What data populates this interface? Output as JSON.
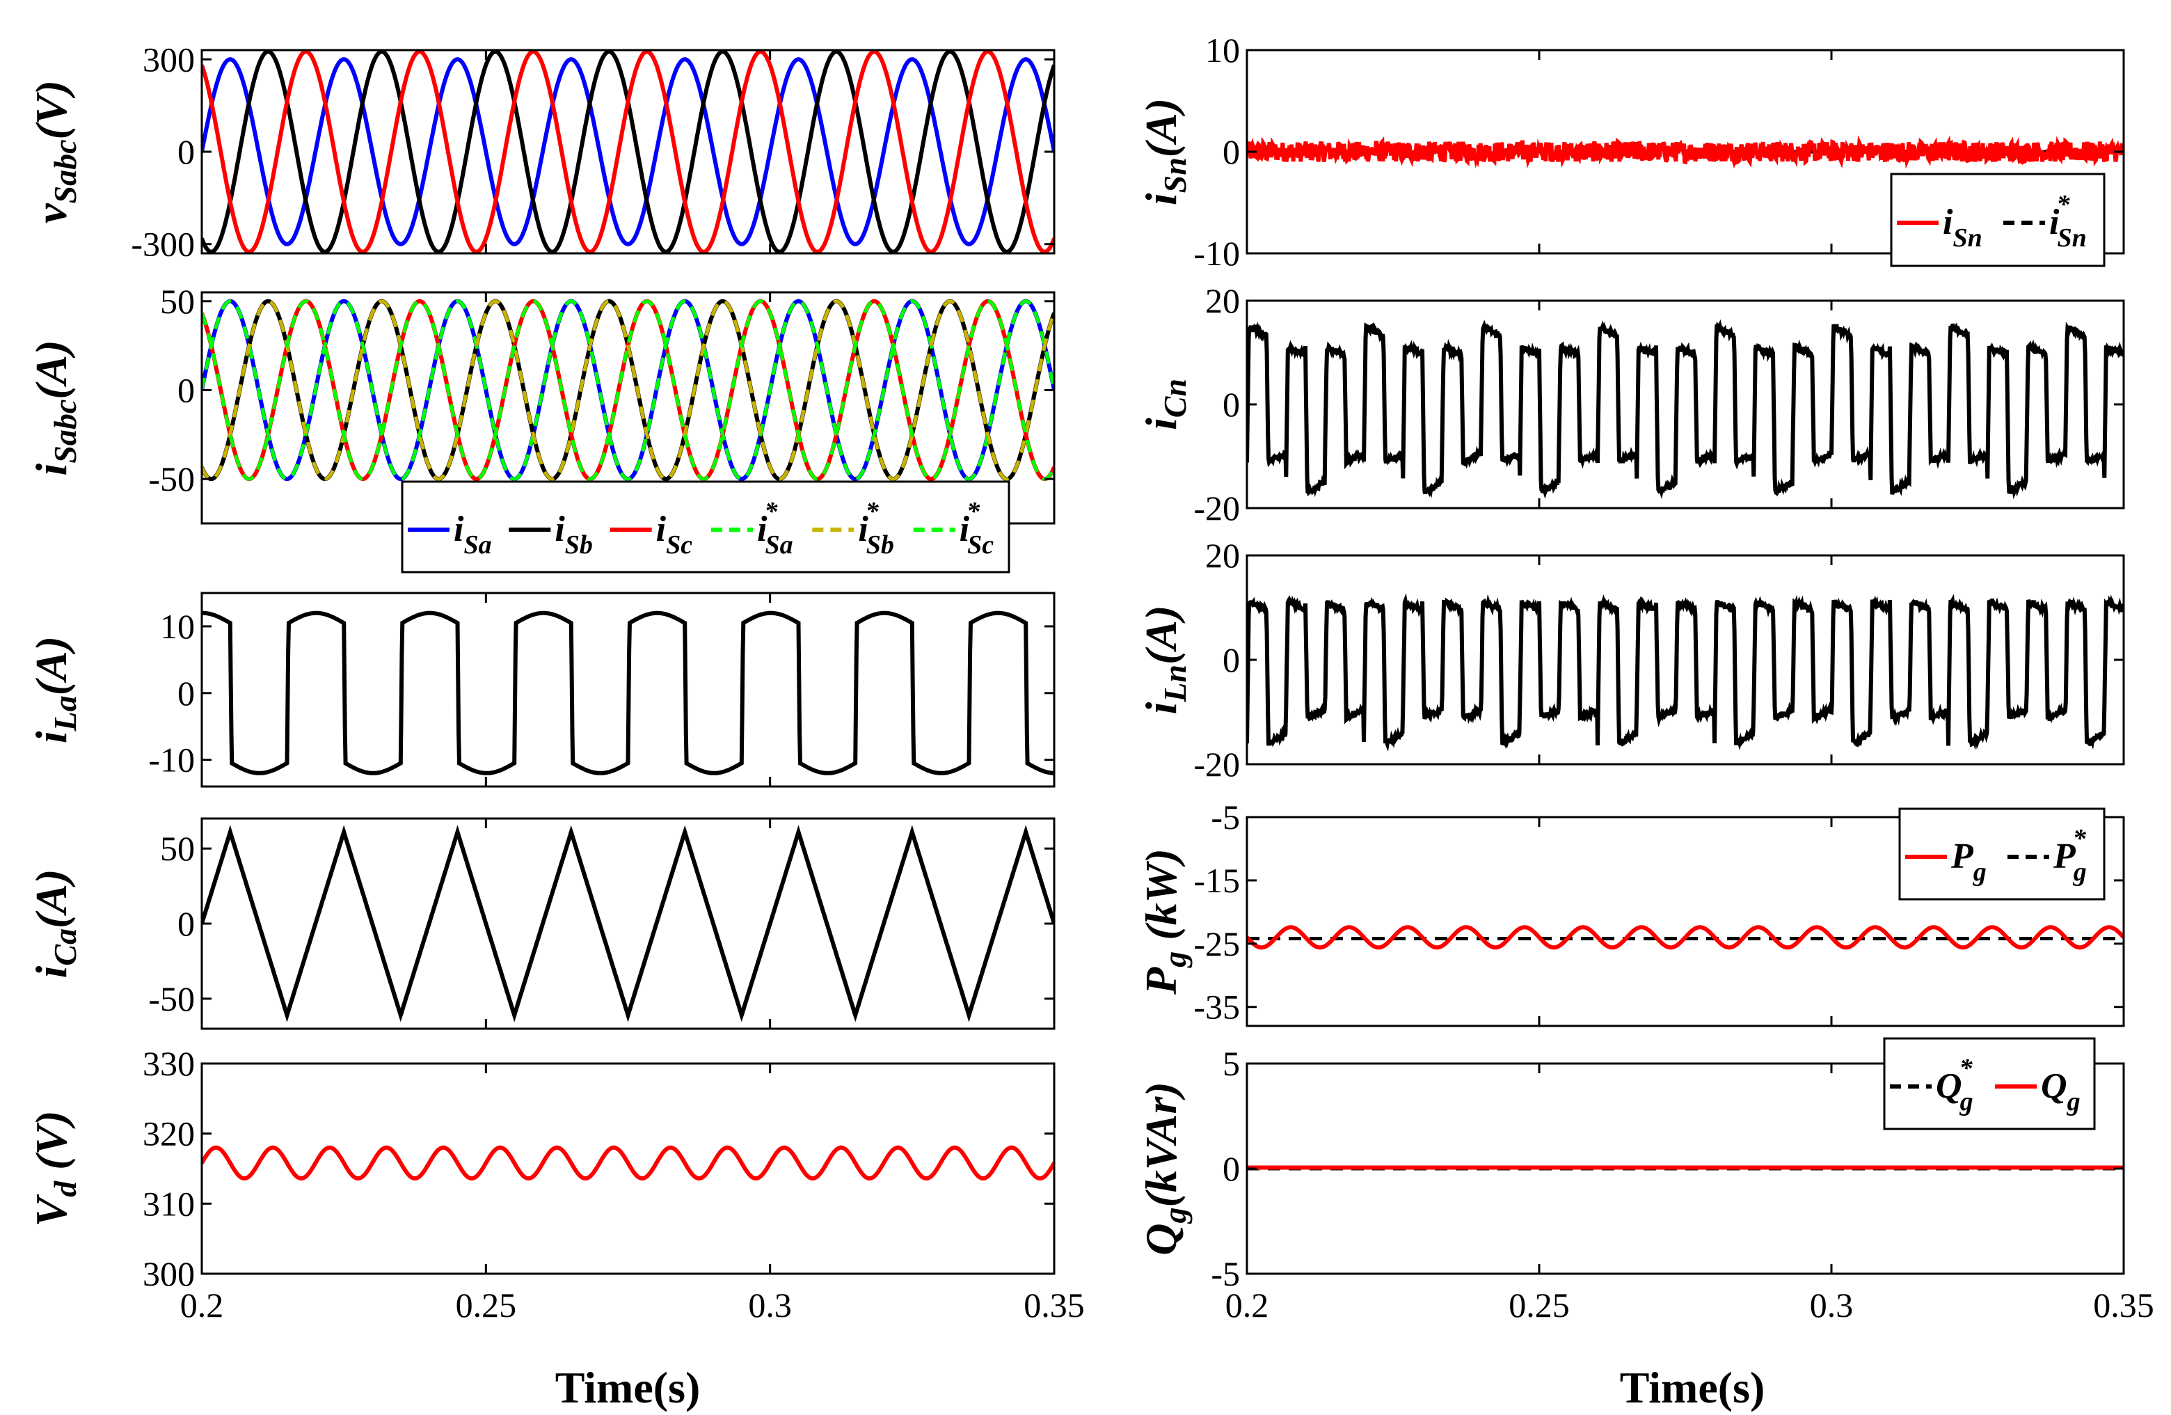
{
  "colors": {
    "blue": "#0000ff",
    "black": "#000000",
    "red": "#ff0000",
    "green": "#00ff00",
    "olive": "#c8b400",
    "axis": "#000000"
  },
  "xaxis": {
    "label": "Time(s)",
    "range": [
      0.2,
      0.35
    ],
    "ticks": [
      "0.2",
      "0.25",
      "0.3",
      "0.35"
    ]
  },
  "chart_data": [
    {
      "id": "vsabc",
      "type": "line",
      "ylabel": {
        "main": "v",
        "sub": "Sabc",
        "unit": "(V)"
      },
      "xlim": [
        0.2,
        0.35
      ],
      "ylim": [
        -330,
        330
      ],
      "yticks": [
        "300",
        "0",
        "-300"
      ],
      "ytick_values": [
        300,
        0,
        -300
      ],
      "series": [
        {
          "name": "v_Sa",
          "color": "blue",
          "kind": "sine",
          "amplitude": 300,
          "frequency_hz": 50,
          "phase_deg": 0
        },
        {
          "name": "v_Sb",
          "color": "black",
          "kind": "sine",
          "amplitude": 325,
          "frequency_hz": 50,
          "phase_deg": -120
        },
        {
          "name": "v_Sc",
          "color": "red",
          "kind": "sine",
          "amplitude": 325,
          "frequency_hz": 50,
          "phase_deg": 120
        }
      ]
    },
    {
      "id": "isabc",
      "type": "line",
      "ylabel": {
        "main": "i",
        "sub": "Sabc",
        "unit": "(A)"
      },
      "xlim": [
        0.2,
        0.35
      ],
      "ylim": [
        -75,
        55
      ],
      "yticks": [
        "50",
        "0",
        "-50"
      ],
      "ytick_values": [
        50,
        0,
        -50
      ],
      "series": [
        {
          "name": "i_Sa",
          "color": "blue",
          "kind": "sine",
          "amplitude": 50,
          "frequency_hz": 50,
          "phase_deg": 0
        },
        {
          "name": "i_Sb",
          "color": "black",
          "kind": "sine",
          "amplitude": 50,
          "frequency_hz": 50,
          "phase_deg": -120
        },
        {
          "name": "i_Sc",
          "color": "red",
          "kind": "sine",
          "amplitude": 50,
          "frequency_hz": 50,
          "phase_deg": 120
        },
        {
          "name": "i*_Sa",
          "color": "green",
          "dash": true,
          "kind": "sine",
          "amplitude": 50,
          "frequency_hz": 50,
          "phase_deg": 0
        },
        {
          "name": "i*_Sb",
          "color": "olive",
          "dash": true,
          "kind": "sine",
          "amplitude": 50,
          "frequency_hz": 50,
          "phase_deg": -120
        },
        {
          "name": "i*_Sc",
          "color": "green",
          "dash": true,
          "kind": "sine",
          "amplitude": 50,
          "frequency_hz": 50,
          "phase_deg": 120
        }
      ],
      "legend": {
        "position": "bottom-right",
        "entries": [
          {
            "color": "blue",
            "dash": false,
            "main": "i",
            "sub": "Sa",
            "sup": ""
          },
          {
            "color": "black",
            "dash": false,
            "main": "i",
            "sub": "Sb",
            "sup": ""
          },
          {
            "color": "red",
            "dash": false,
            "main": "i",
            "sub": "Sc",
            "sup": ""
          },
          {
            "color": "green",
            "dash": true,
            "main": "i",
            "sub": "Sa",
            "sup": "*"
          },
          {
            "color": "olive",
            "dash": true,
            "main": "i",
            "sub": "Sb",
            "sup": "*"
          },
          {
            "color": "green",
            "dash": true,
            "main": "i",
            "sub": "Sc",
            "sup": "*"
          }
        ]
      }
    },
    {
      "id": "ila",
      "type": "line",
      "ylabel": {
        "main": "i",
        "sub": "La",
        "unit": "(A)"
      },
      "xlim": [
        0.2,
        0.35
      ],
      "ylim": [
        -14,
        15
      ],
      "yticks": [
        "10",
        "0",
        "-10"
      ],
      "ytick_values": [
        10,
        0,
        -10
      ],
      "series": [
        {
          "name": "i_La",
          "color": "black",
          "kind": "square",
          "level": 10.5,
          "ripple": 1.5,
          "frequency_hz": 50,
          "phase_deg": 90
        }
      ]
    },
    {
      "id": "ica",
      "type": "line",
      "ylabel": {
        "main": "i",
        "sub": "Ca",
        "unit": "(A)"
      },
      "xlim": [
        0.2,
        0.35
      ],
      "ylim": [
        -70,
        70
      ],
      "yticks": [
        "50",
        "0",
        "-50"
      ],
      "ytick_values": [
        50,
        0,
        -50
      ],
      "series": [
        {
          "name": "i_Ca",
          "color": "black",
          "kind": "triangle",
          "amplitude": 61,
          "frequency_hz": 50,
          "phase_deg": 0
        }
      ]
    },
    {
      "id": "vd",
      "type": "line",
      "ylabel": {
        "main": "V",
        "sub": "d",
        "unit": " (V)"
      },
      "xlim": [
        0.2,
        0.35
      ],
      "ylim": [
        300,
        330
      ],
      "yticks": [
        "330",
        "320",
        "310",
        "300"
      ],
      "ytick_values": [
        330,
        320,
        310,
        300
      ],
      "series": [
        {
          "name": "V_d",
          "color": "red",
          "kind": "sine",
          "offset": 315.8,
          "amplitude": 2.2,
          "frequency_hz": 100,
          "phase_deg": 0
        }
      ]
    },
    {
      "id": "isn",
      "type": "line",
      "ylabel": {
        "main": "i",
        "sub": "Sn",
        "unit": "(A)"
      },
      "xlim": [
        0.2,
        0.35
      ],
      "ylim": [
        -10,
        10
      ],
      "yticks": [
        "10",
        "0",
        "-10"
      ],
      "ytick_values": [
        10,
        0,
        -10
      ],
      "series": [
        {
          "name": "i*_Sn",
          "color": "black",
          "dash": true,
          "kind": "const",
          "offset": 0
        },
        {
          "name": "i_Sn",
          "color": "red",
          "kind": "noise",
          "offset": 0,
          "amplitude": 1.0
        }
      ],
      "legend": {
        "position": "bottom-right",
        "entries": [
          {
            "color": "red",
            "dash": false,
            "main": "i",
            "sub": "Sn",
            "sup": ""
          },
          {
            "color": "black",
            "dash": true,
            "main": "i",
            "sub": "Sn",
            "sup": "*"
          }
        ]
      }
    },
    {
      "id": "icn",
      "type": "line",
      "ylabel": {
        "main": "i",
        "sub": "Cn",
        "unit": ""
      },
      "xlim": [
        0.2,
        0.35
      ],
      "ylim": [
        -20,
        20
      ],
      "yticks": [
        "20",
        "0",
        "-20"
      ],
      "ytick_values": [
        20,
        0,
        -20
      ],
      "series": [
        {
          "name": "i_Cn",
          "color": "black",
          "kind": "triplen",
          "pattern": [
            15,
            -11,
            11,
            -17,
            11,
            -11
          ],
          "frequency_hz": 50
        }
      ]
    },
    {
      "id": "iln",
      "type": "line",
      "ylabel": {
        "main": "i",
        "sub": "Ln",
        "unit": "(A)"
      },
      "xlim": [
        0.2,
        0.35
      ],
      "ylim": [
        -20,
        20
      ],
      "yticks": [
        "20",
        "0",
        "-20"
      ],
      "ytick_values": [
        20,
        0,
        -20
      ],
      "series": [
        {
          "name": "i_Ln",
          "color": "black",
          "kind": "triplen",
          "pattern": [
            11,
            -11,
            11,
            -16,
            11,
            -11
          ],
          "frequency_hz": 50,
          "shift": 1
        }
      ]
    },
    {
      "id": "pg",
      "type": "line",
      "ylabel": {
        "main": "P",
        "sub": "g",
        "unit": " (kW)"
      },
      "xlim": [
        0.2,
        0.35
      ],
      "ylim": [
        -38,
        -5
      ],
      "yticks": [
        "-5",
        "-15",
        "-25",
        "-35"
      ],
      "ytick_values": [
        -5,
        -15,
        -25,
        -35
      ],
      "series": [
        {
          "name": "P*_g",
          "color": "black",
          "dash": true,
          "kind": "const",
          "offset": -24.2
        },
        {
          "name": "P_g",
          "color": "red",
          "kind": "sine",
          "offset": -24,
          "amplitude": 1.6,
          "frequency_hz": 100,
          "phase_deg": 180
        }
      ],
      "legend": {
        "position": "top-right",
        "entries": [
          {
            "color": "red",
            "dash": false,
            "main": "P",
            "sub": "g",
            "sup": ""
          },
          {
            "color": "black",
            "dash": true,
            "main": "P",
            "sub": "g",
            "sup": "*"
          }
        ]
      }
    },
    {
      "id": "qg",
      "type": "line",
      "ylabel": {
        "main": "Q",
        "sub": "g",
        "unit": "(kVAr)"
      },
      "xlim": [
        0.2,
        0.35
      ],
      "ylim": [
        -5,
        5
      ],
      "yticks": [
        "5",
        "0",
        "-5"
      ],
      "ytick_values": [
        5,
        0,
        -5
      ],
      "series": [
        {
          "name": "Q*_g",
          "color": "black",
          "dash": true,
          "kind": "const",
          "offset": 0
        },
        {
          "name": "Q_g",
          "color": "red",
          "kind": "const",
          "offset": 0.05
        }
      ],
      "legend": {
        "position": "top-right",
        "entries": [
          {
            "color": "black",
            "dash": true,
            "main": "Q",
            "sub": "g",
            "sup": "*"
          },
          {
            "color": "red",
            "dash": false,
            "main": "Q",
            "sub": "g",
            "sup": ""
          }
        ]
      }
    }
  ]
}
